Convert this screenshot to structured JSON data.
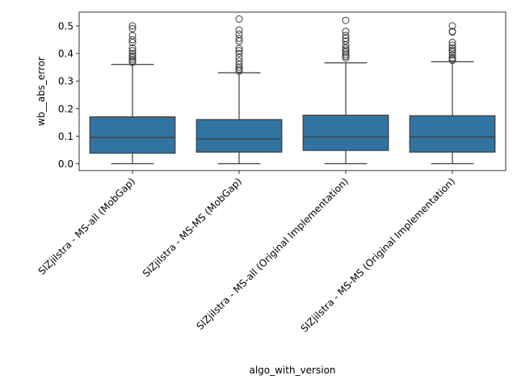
{
  "chart_data": {
    "type": "box",
    "xlabel": "algo_with_version",
    "ylabel": "wb__abs_error",
    "ylim": [
      -0.025,
      0.55
    ],
    "yticks": [
      0.0,
      0.1,
      0.2,
      0.3,
      0.4,
      0.5
    ],
    "ytick_labels": [
      "0.0",
      "0.1",
      "0.2",
      "0.3",
      "0.4",
      "0.5"
    ],
    "grid": false,
    "legend": "none",
    "box_color": "#3274a1",
    "categories": [
      "SlZjilstra - MS-all (MobGap)",
      "SlZjilstra - MS-MS (MobGap)",
      "SlZjilstra - MS-all (Original Implementation)",
      "SlZjilstra - MS-MS (Original Implementation)"
    ],
    "boxes": [
      {
        "whisker_low": 0.0,
        "q1": 0.038,
        "median": 0.095,
        "q3": 0.17,
        "whisker_high": 0.36,
        "outliers": [
          0.368,
          0.372,
          0.378,
          0.385,
          0.392,
          0.4,
          0.41,
          0.42,
          0.44,
          0.45,
          0.465,
          0.49,
          0.5
        ]
      },
      {
        "whisker_low": 0.0,
        "q1": 0.042,
        "median": 0.09,
        "q3": 0.16,
        "whisker_high": 0.33,
        "outliers": [
          0.336,
          0.343,
          0.35,
          0.36,
          0.372,
          0.385,
          0.4,
          0.41,
          0.418,
          0.445,
          0.455,
          0.47,
          0.485,
          0.525
        ]
      },
      {
        "whisker_low": 0.0,
        "q1": 0.048,
        "median": 0.097,
        "q3": 0.176,
        "whisker_high": 0.366,
        "outliers": [
          0.384,
          0.39,
          0.397,
          0.405,
          0.413,
          0.42,
          0.43,
          0.445,
          0.455,
          0.465,
          0.48,
          0.52
        ]
      },
      {
        "whisker_low": 0.0,
        "q1": 0.042,
        "median": 0.097,
        "q3": 0.174,
        "whisker_high": 0.37,
        "outliers": [
          0.375,
          0.38,
          0.385,
          0.395,
          0.405,
          0.412,
          0.42,
          0.43,
          0.44,
          0.478,
          0.48,
          0.5
        ]
      }
    ]
  }
}
